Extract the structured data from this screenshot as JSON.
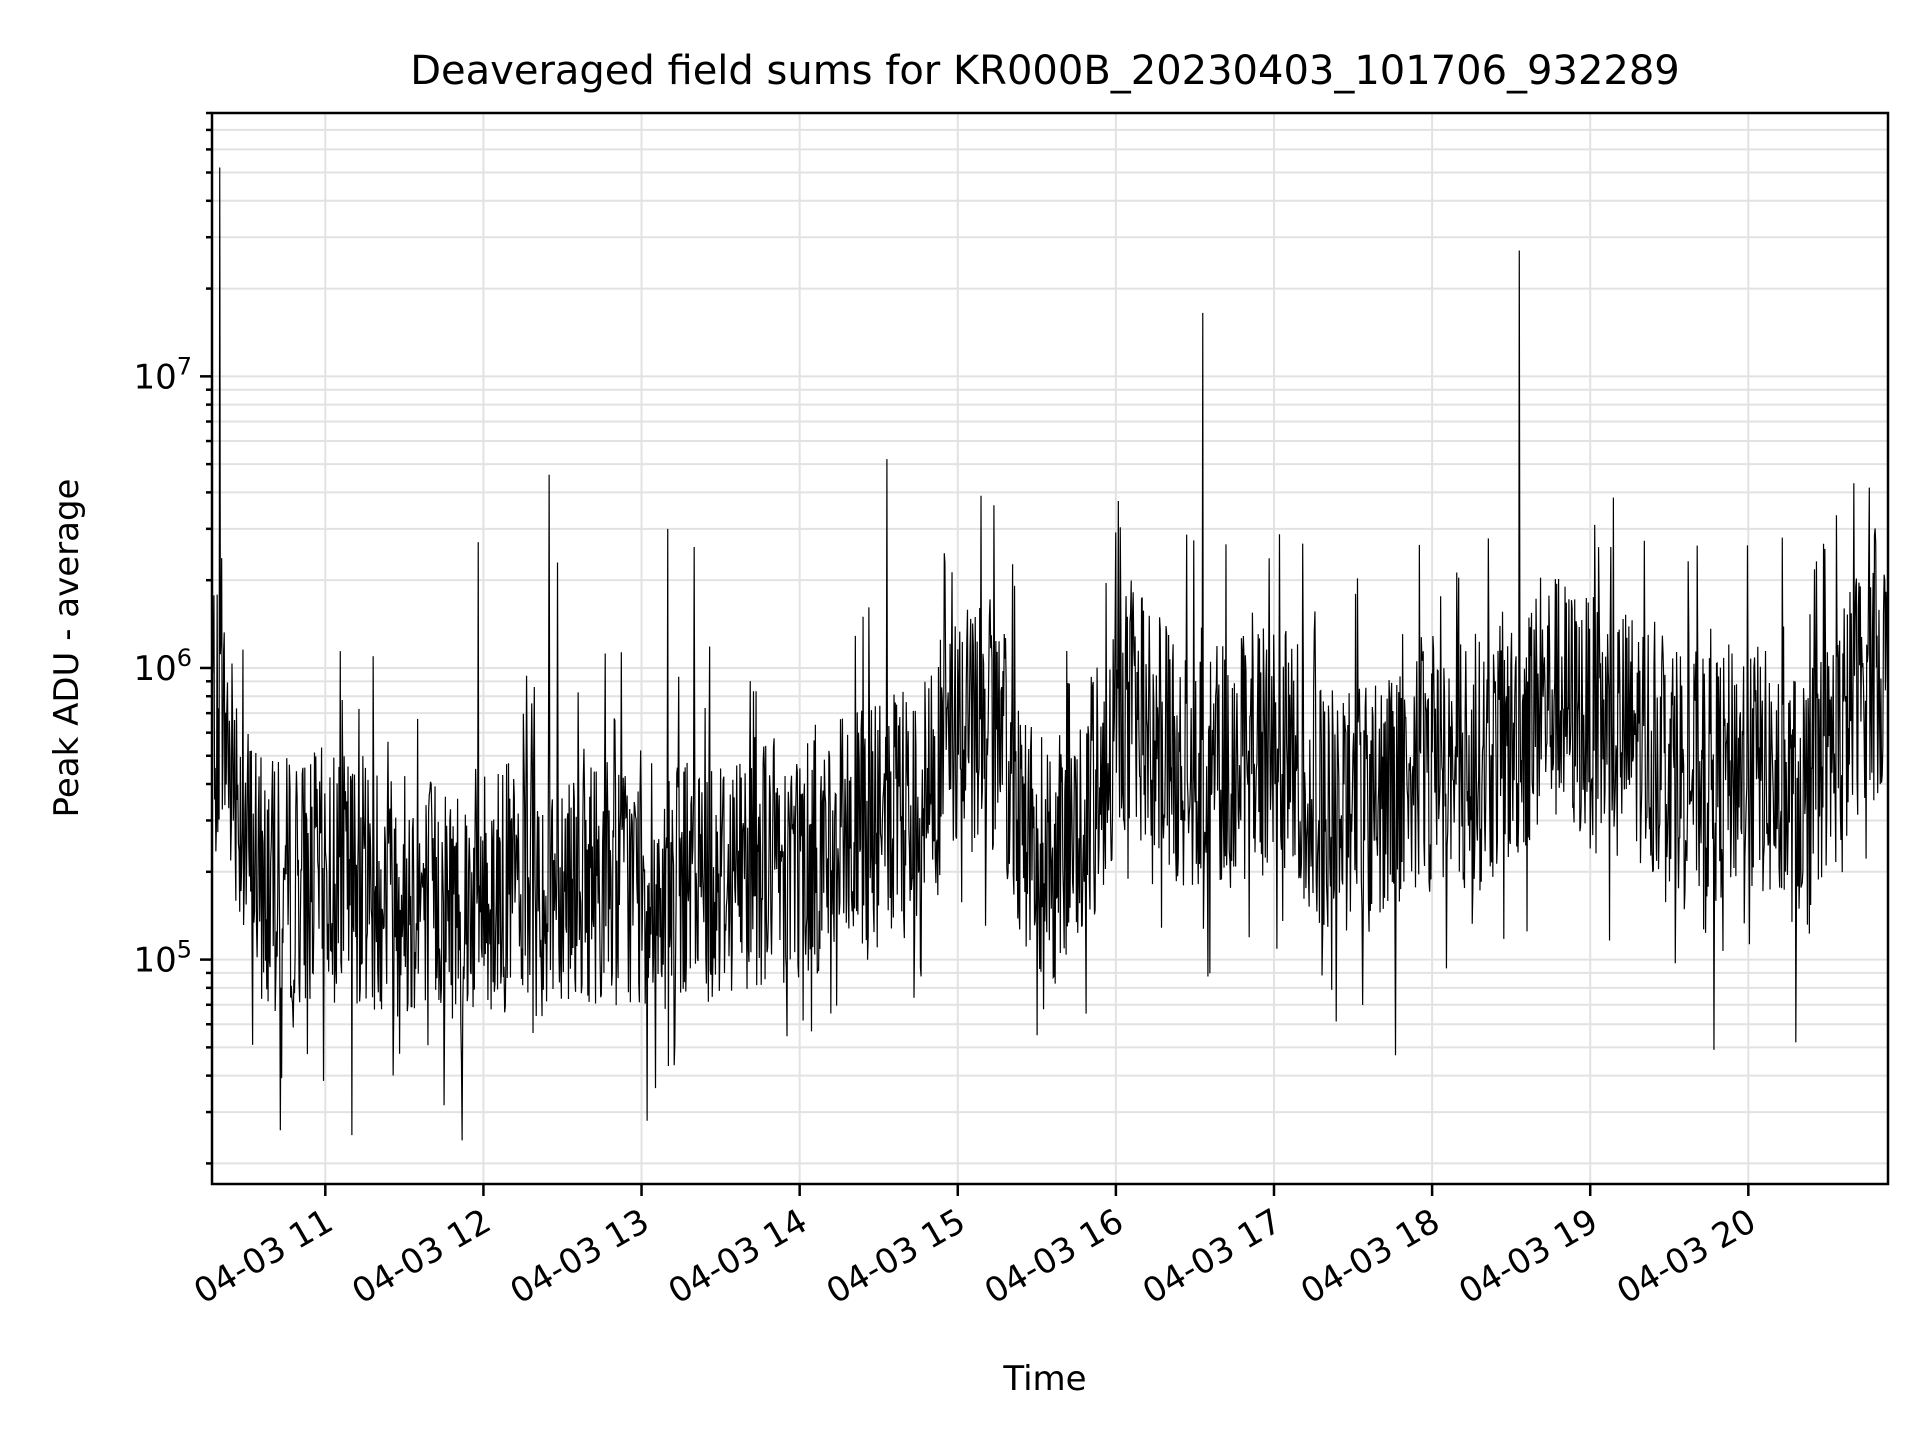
{
  "chart_data": {
    "type": "line",
    "title": "Deaveraged field sums for KR000B_20230403_101706_932289",
    "xlabel": "Time",
    "ylabel": "Peak ADU - average",
    "y_scale": "log",
    "ylim": [
      17000,
      80000000
    ],
    "xlim": [
      "2023-04-03 10:17",
      "2023-04-03 20:53"
    ],
    "x_tick_labels": [
      "04-03 11",
      "04-03 12",
      "04-03 13",
      "04-03 14",
      "04-03 15",
      "04-03 16",
      "04-03 17",
      "04-03 18",
      "04-03 19",
      "04-03 20"
    ],
    "y_tick_labels": [
      {
        "base": "10",
        "exp": "5",
        "value": 100000
      },
      {
        "base": "10",
        "exp": "6",
        "value": 1000000
      },
      {
        "base": "10",
        "exp": "7",
        "value": 10000000
      }
    ],
    "grid": true,
    "line_color": "#000000",
    "series": [
      {
        "x": [
          "2023-04-03 10:17",
          "2023-04-03 10:20",
          "2023-04-03 10:25",
          "2023-04-03 10:30",
          "2023-04-03 10:40",
          "2023-04-03 10:50",
          "2023-04-03 11:00",
          "2023-04-03 11:15",
          "2023-04-03 11:30",
          "2023-04-03 11:45",
          "2023-04-03 12:00",
          "2023-04-03 12:15",
          "2023-04-03 12:30",
          "2023-04-03 12:45",
          "2023-04-03 13:00",
          "2023-04-03 13:15",
          "2023-04-03 13:30",
          "2023-04-03 13:45",
          "2023-04-03 14:00",
          "2023-04-03 14:15",
          "2023-04-03 14:30",
          "2023-04-03 14:45",
          "2023-04-03 14:55",
          "2023-04-03 15:05",
          "2023-04-03 15:15",
          "2023-04-03 15:25",
          "2023-04-03 15:35",
          "2023-04-03 15:45",
          "2023-04-03 15:55",
          "2023-04-03 16:05",
          "2023-04-03 16:20",
          "2023-04-03 16:35",
          "2023-04-03 16:50",
          "2023-04-03 17:00",
          "2023-04-03 17:10",
          "2023-04-03 17:20",
          "2023-04-03 17:30",
          "2023-04-03 17:45",
          "2023-04-03 18:00",
          "2023-04-03 18:15",
          "2023-04-03 18:30",
          "2023-04-03 18:45",
          "2023-04-03 19:00",
          "2023-04-03 19:15",
          "2023-04-03 19:30",
          "2023-04-03 19:45",
          "2023-04-03 20:00",
          "2023-04-03 20:15",
          "2023-04-03 20:25",
          "2023-04-03 20:35",
          "2023-04-03 20:45",
          "2023-04-03 20:53"
        ],
        "y": [
          900000,
          700000,
          500000,
          250000,
          180000,
          190000,
          200000,
          190000,
          170000,
          160000,
          170000,
          180000,
          200000,
          190000,
          180000,
          170000,
          200000,
          220000,
          230000,
          250000,
          280000,
          330000,
          500000,
          750000,
          600000,
          300000,
          200000,
          250000,
          450000,
          800000,
          500000,
          450000,
          500000,
          550000,
          450000,
          300000,
          350000,
          400000,
          500000,
          450000,
          550000,
          800000,
          650000,
          600000,
          500000,
          400000,
          500000,
          350000,
          400000,
          600000,
          1000000,
          1000000
        ]
      }
    ],
    "spikes": [
      {
        "x": "2023-04-03 10:20",
        "y": 52000000
      },
      {
        "x": "2023-04-03 11:58",
        "y": 2700000
      },
      {
        "x": "2023-04-03 12:25",
        "y": 4600000
      },
      {
        "x": "2023-04-03 12:28",
        "y": 2300000
      },
      {
        "x": "2023-04-03 13:10",
        "y": 3000000
      },
      {
        "x": "2023-04-03 13:20",
        "y": 2600000
      },
      {
        "x": "2023-04-03 14:33",
        "y": 5200000
      },
      {
        "x": "2023-04-03 16:33",
        "y": 16500000
      },
      {
        "x": "2023-04-03 18:33",
        "y": 27000000
      },
      {
        "x": "2023-04-03 20:13",
        "y": 2800000
      },
      {
        "x": "2023-04-03 20:40",
        "y": 4300000
      }
    ],
    "dips": [
      {
        "x": "2023-04-03 10:43",
        "y": 26000
      },
      {
        "x": "2023-04-03 11:10",
        "y": 25000
      },
      {
        "x": "2023-04-03 11:52",
        "y": 24000
      },
      {
        "x": "2023-04-03 13:02",
        "y": 28000
      },
      {
        "x": "2023-04-03 15:30",
        "y": 55000
      },
      {
        "x": "2023-04-03 17:46",
        "y": 47000
      },
      {
        "x": "2023-04-03 19:47",
        "y": 49000
      },
      {
        "x": "2023-04-03 20:18",
        "y": 52000
      }
    ]
  }
}
